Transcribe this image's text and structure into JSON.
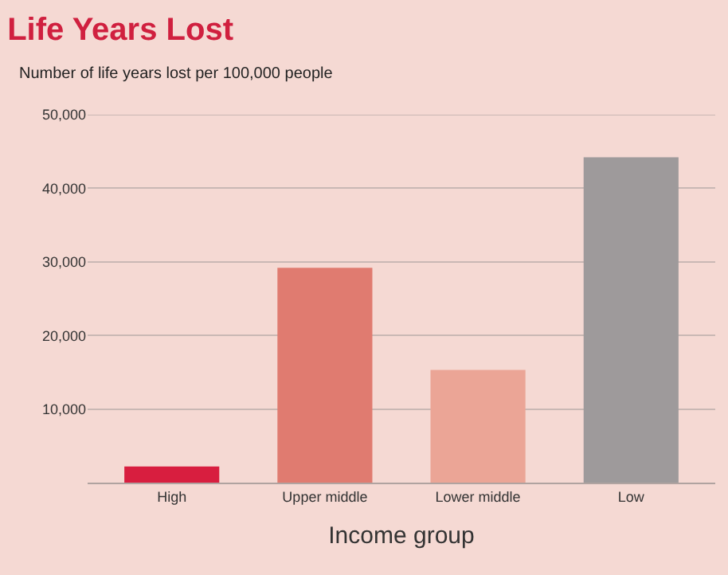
{
  "chart_data": {
    "type": "bar",
    "title": "Life Years Lost",
    "subtitle": "Number of life years lost per 100,000 people",
    "xlabel": "Income group",
    "categories": [
      "High",
      "Upper middle",
      "Lower middle",
      "Low"
    ],
    "values": [
      2200,
      29200,
      15300,
      44200
    ],
    "colors": [
      "#d81e3f",
      "#e07b70",
      "#eba596",
      "#9e9a9b"
    ],
    "ylim": [
      0,
      50000
    ],
    "yticks": [
      {
        "value": 10000,
        "label": "10,000"
      },
      {
        "value": 20000,
        "label": "20,000"
      },
      {
        "value": 30000,
        "label": "30,000"
      },
      {
        "value": 40000,
        "label": "40,000"
      },
      {
        "value": 50000,
        "label": "50,000"
      }
    ],
    "grid": "y",
    "legend": false
  }
}
